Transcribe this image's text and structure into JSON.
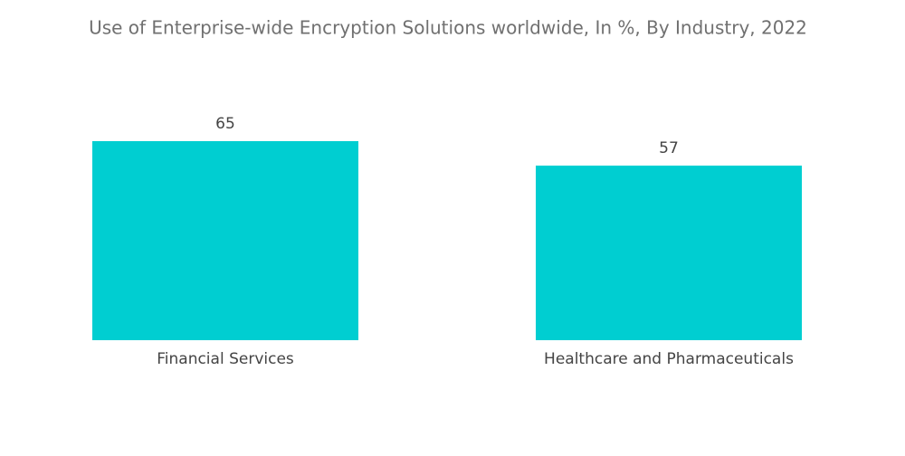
{
  "chart_data": {
    "type": "bar",
    "title": "Use of Enterprise-wide Encryption Solutions worldwide, In %, By Industry, 2022",
    "categories": [
      "Financial Services",
      "Healthcare and Pharmaceuticals"
    ],
    "values": [
      65,
      57
    ],
    "color": "#00ced1"
  }
}
